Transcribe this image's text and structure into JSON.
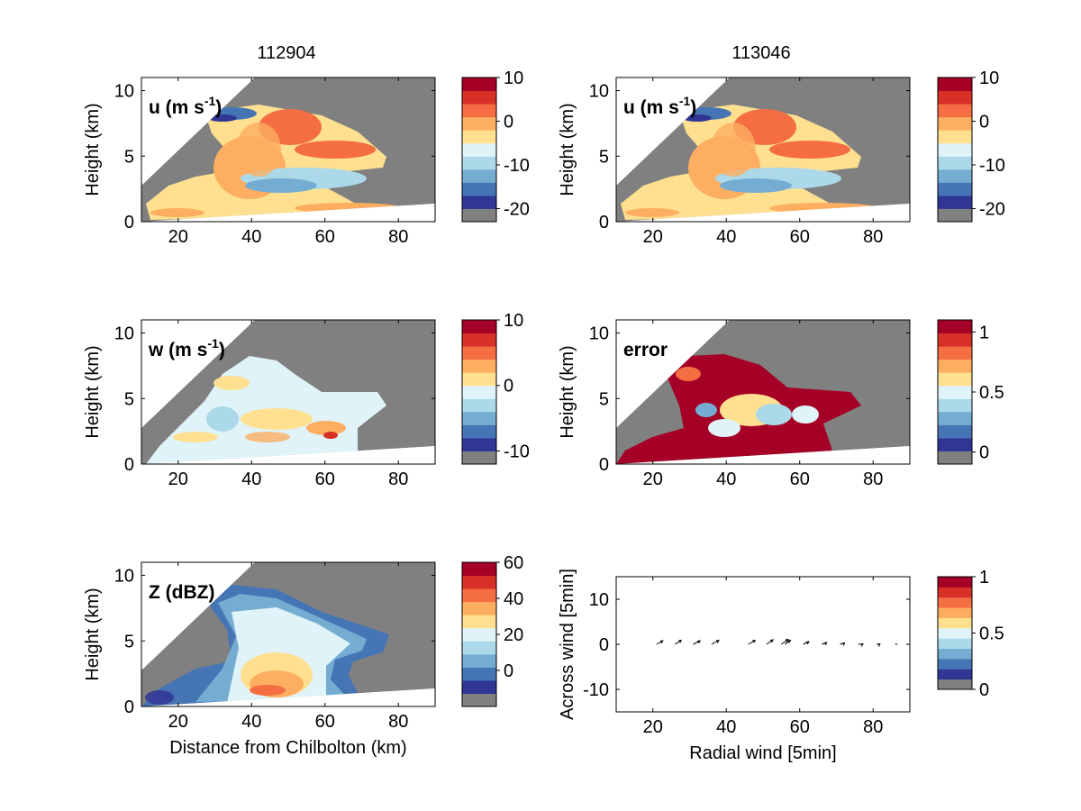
{
  "titles": {
    "left": "112904",
    "right": "113046"
  },
  "colors": {
    "missing": "#808080",
    "scale": [
      "#313695",
      "#4575b4",
      "#74add1",
      "#abd9e9",
      "#e0f3f8",
      "#fee090",
      "#fdae61",
      "#f46d43",
      "#d73027",
      "#a50026"
    ]
  },
  "chart_data": [
    {
      "id": "u1",
      "type": "heatmap",
      "column": "112904",
      "label": "u (m s-1)",
      "label_parts": [
        "u (m s",
        "-1",
        ")"
      ],
      "xlabel": "",
      "ylabel": "Height (km)",
      "xlim": [
        10,
        90
      ],
      "ylim": [
        0,
        11
      ],
      "xticks": [
        20,
        40,
        60,
        80
      ],
      "yticks": [
        0,
        5,
        10
      ],
      "colorbar": {
        "min": -23,
        "max": 10,
        "ticks": [
          10,
          0,
          -10,
          -20
        ]
      }
    },
    {
      "id": "u2",
      "type": "heatmap",
      "column": "113046",
      "label": "u (m s-1)",
      "label_parts": [
        "u (m s",
        "-1",
        ")"
      ],
      "xlabel": "",
      "ylabel": "Height (km)",
      "xlim": [
        10,
        90
      ],
      "ylim": [
        0,
        11
      ],
      "xticks": [
        20,
        40,
        60,
        80
      ],
      "yticks": [
        0,
        5,
        10
      ],
      "colorbar": {
        "min": -23,
        "max": 10,
        "ticks": [
          10,
          0,
          -10,
          -20
        ]
      }
    },
    {
      "id": "w",
      "type": "heatmap",
      "column": "112904",
      "label": "w (m s-1)",
      "label_parts": [
        "w (m s",
        "-1",
        ")"
      ],
      "xlabel": "",
      "ylabel": "Height (km)",
      "xlim": [
        10,
        90
      ],
      "ylim": [
        0,
        11
      ],
      "xticks": [
        20,
        40,
        60,
        80
      ],
      "yticks": [
        0,
        5,
        10
      ],
      "colorbar": {
        "min": -12,
        "max": 10,
        "ticks": [
          10,
          0,
          -10
        ]
      }
    },
    {
      "id": "err",
      "type": "heatmap",
      "column": "113046",
      "label": "error",
      "label_parts": [
        "error",
        "",
        ""
      ],
      "xlabel": "",
      "ylabel": "Height (km)",
      "xlim": [
        10,
        90
      ],
      "ylim": [
        0,
        11
      ],
      "xticks": [
        20,
        40,
        60,
        80
      ],
      "yticks": [
        0,
        5,
        10
      ],
      "colorbar": {
        "min": -0.1,
        "max": 1.1,
        "ticks": [
          1,
          0.5,
          0
        ]
      }
    },
    {
      "id": "z",
      "type": "heatmap",
      "column": "112904",
      "label": "Z (dBZ)",
      "label_parts": [
        "Z (dBZ)",
        "",
        ""
      ],
      "xlabel": "Distance from Chilbolton (km)",
      "ylabel": "Height (km)",
      "xlim": [
        10,
        90
      ],
      "ylim": [
        0,
        11
      ],
      "xticks": [
        20,
        40,
        60,
        80
      ],
      "yticks": [
        0,
        5,
        10
      ],
      "colorbar": {
        "min": -20,
        "max": 60,
        "ticks": [
          60,
          40,
          20,
          0
        ]
      }
    },
    {
      "id": "q",
      "type": "scatter",
      "column": "113046",
      "label": "",
      "xlabel": "Radial wind [5min]",
      "ylabel": "Across wind [5min]",
      "xlim": [
        10,
        90
      ],
      "ylim": [
        -15,
        15
      ],
      "xticks": [
        20,
        40,
        60,
        80
      ],
      "yticks": [
        10,
        0,
        -10
      ],
      "colorbar": {
        "min": 0,
        "max": 1,
        "ticks": [
          1,
          0.5,
          0
        ]
      },
      "x": [
        10,
        21,
        26,
        31,
        36,
        46,
        51,
        55,
        56,
        61,
        66,
        71,
        76,
        81,
        86
      ],
      "y": [
        0,
        0,
        0,
        0,
        0,
        0,
        0,
        0,
        0,
        0,
        0,
        0,
        0,
        0,
        0
      ],
      "u": [
        0.2,
        1.4,
        1.4,
        1.5,
        1.6,
        1.5,
        1.4,
        1.5,
        1.2,
        1.2,
        1.1,
        1.0,
        1.0,
        0.7,
        0.5
      ],
      "v": [
        0.0,
        0.8,
        0.9,
        0.8,
        0.9,
        0.9,
        1.0,
        1.1,
        0.9,
        0.6,
        0.4,
        0.3,
        0.1,
        0.1,
        0.0
      ]
    }
  ]
}
